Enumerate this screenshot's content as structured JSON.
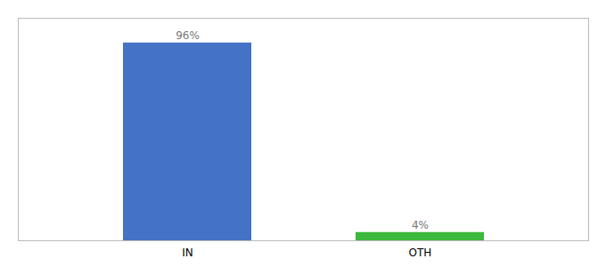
{
  "chart_data": {
    "type": "bar",
    "categories": [
      "IN",
      "OTH"
    ],
    "values": [
      96,
      4
    ],
    "value_labels": [
      "96%",
      "4%"
    ],
    "colors": [
      "#4472c4",
      "#3cb83c"
    ],
    "data_labels": true,
    "ylim": [
      0,
      108
    ],
    "tick_labels": "x"
  }
}
